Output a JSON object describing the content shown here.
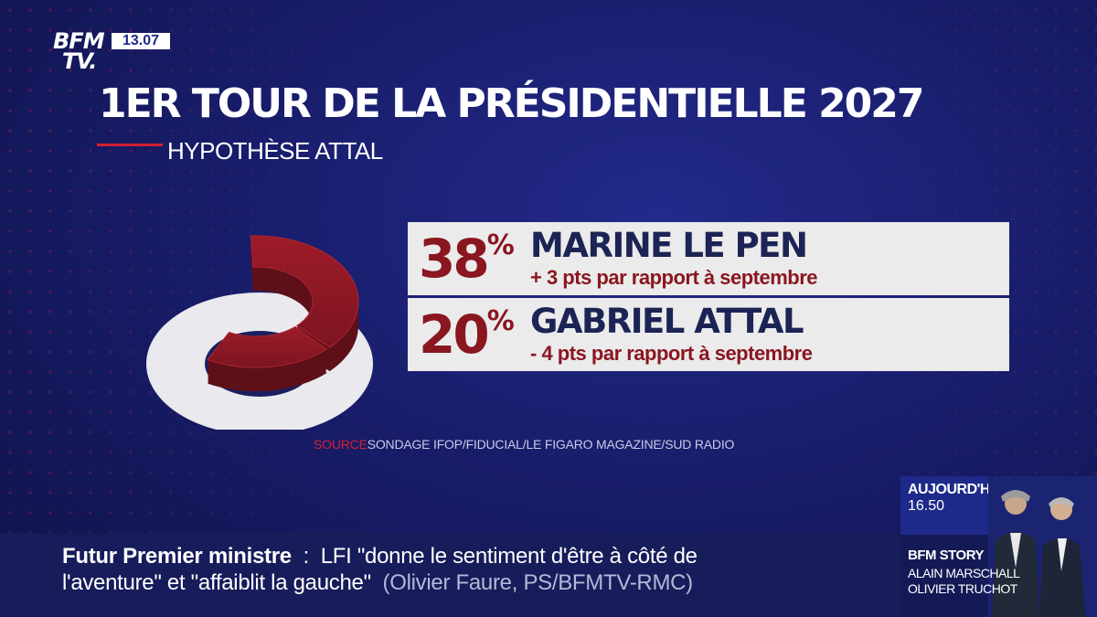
{
  "channel": {
    "logo_line1": "BFM",
    "logo_line2": "TV.",
    "time": "13.07"
  },
  "graphic": {
    "title": "1ER TOUR DE LA PRÉSIDENTIELLE 2027",
    "subtitle": "HYPOTHÈSE ATTAL",
    "source_label": "SOURCE",
    "source_text": "SONDAGE IFOP/FIDUCIAL/LE FIGARO MAGAZINE/SUD RADIO"
  },
  "chart_data": {
    "type": "pie",
    "title": "1ER TOUR DE LA PRÉSIDENTIELLE 2027",
    "subtitle": "HYPOTHÈSE ATTAL",
    "series": [
      {
        "name": "MARINE LE PEN",
        "value": 38,
        "value_number": "38",
        "unit": "%",
        "note": "+ 3 pts par rapport à septembre",
        "color": "#8a1620"
      },
      {
        "name": "GABRIEL ATTAL",
        "value": 20,
        "value_number": "20",
        "unit": "%",
        "note": "- 4 pts par rapport à septembre",
        "color": "#8a1620"
      }
    ]
  },
  "ticker": {
    "topic": "Futur Premier ministre",
    "separator": ":",
    "line1_text": "LFI \"donne le sentiment d'être à côté de",
    "line2_text": "l'aventure\" et \"affaiblit la gauche\"",
    "line2_source": "(Olivier Faure, PS/BFMTV-RMC)"
  },
  "side_panel": {
    "label": "AUJOURD'HUI",
    "time": "16.50",
    "program": "BFM STORY",
    "host1": "ALAIN MARSCHALL",
    "host2": "OLIVIER TRUCHOT"
  },
  "colors": {
    "background": "#181d6b",
    "accent": "#d21f33",
    "value": "#8a1620",
    "row_bg": "#ebebeb"
  }
}
